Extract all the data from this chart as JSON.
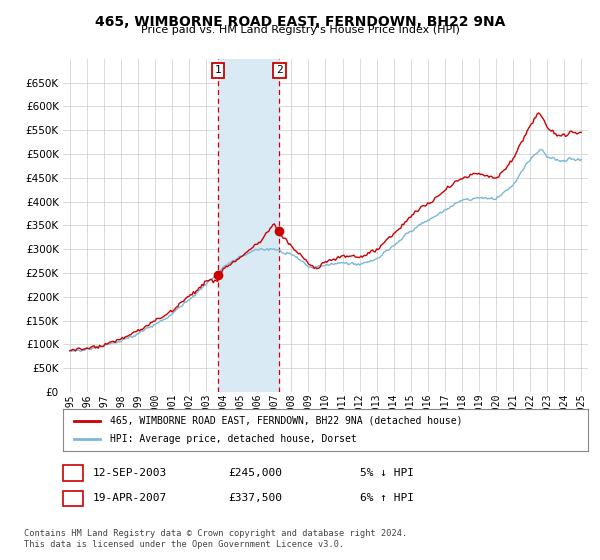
{
  "title": "465, WIMBORNE ROAD EAST, FERNDOWN, BH22 9NA",
  "subtitle": "Price paid vs. HM Land Registry's House Price Index (HPI)",
  "legend_line1": "465, WIMBORNE ROAD EAST, FERNDOWN, BH22 9NA (detached house)",
  "legend_line2": "HPI: Average price, detached house, Dorset",
  "transaction1_date": "12-SEP-2003",
  "transaction1_price": 245000,
  "transaction1_label": "5% ↓ HPI",
  "transaction1_x": 2003.7,
  "transaction2_date": "19-APR-2007",
  "transaction2_price": 337500,
  "transaction2_label": "6% ↑ HPI",
  "transaction2_x": 2007.3,
  "hpi_color": "#7ab8d9",
  "price_color": "#cc0000",
  "marker_color": "#cc0000",
  "shade_color": "#daeaf5",
  "vline_color": "#cc0000",
  "grid_color": "#cccccc",
  "background_color": "#ffffff",
  "footnote1": "Contains HM Land Registry data © Crown copyright and database right 2024.",
  "footnote2": "This data is licensed under the Open Government Licence v3.0.",
  "ylim": [
    0,
    700000
  ],
  "xlim_start": 1994.6,
  "xlim_end": 2025.4,
  "yticks": [
    0,
    50000,
    100000,
    150000,
    200000,
    250000,
    300000,
    350000,
    400000,
    450000,
    500000,
    550000,
    600000,
    650000
  ],
  "xticks": [
    1995,
    1996,
    1997,
    1998,
    1999,
    2000,
    2001,
    2002,
    2003,
    2004,
    2005,
    2006,
    2007,
    2008,
    2009,
    2010,
    2011,
    2012,
    2013,
    2014,
    2015,
    2016,
    2017,
    2018,
    2019,
    2020,
    2021,
    2022,
    2023,
    2024,
    2025
  ]
}
